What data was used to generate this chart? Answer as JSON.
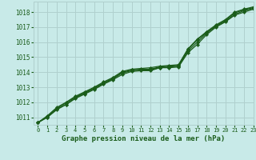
{
  "title": "Graphe pression niveau de la mer (hPa)",
  "background_color": "#c8eae8",
  "grid_color": "#b0d0ce",
  "line_color": "#1a5c1a",
  "text_color": "#1a5c1a",
  "xlim": [
    -0.5,
    23
  ],
  "ylim": [
    1010.5,
    1018.7
  ],
  "xticks": [
    0,
    1,
    2,
    3,
    4,
    5,
    6,
    7,
    8,
    9,
    10,
    11,
    12,
    13,
    14,
    15,
    16,
    17,
    18,
    19,
    20,
    21,
    22,
    23
  ],
  "yticks": [
    1011,
    1012,
    1013,
    1014,
    1015,
    1016,
    1017,
    1018
  ],
  "series": [
    [
      1010.65,
      1011.0,
      1011.55,
      1011.85,
      1012.25,
      1012.55,
      1012.85,
      1013.2,
      1013.5,
      1013.85,
      1014.05,
      1014.1,
      1014.1,
      1014.3,
      1014.3,
      1014.35,
      1015.3,
      1015.85,
      1016.5,
      1017.0,
      1017.35,
      1017.8,
      1018.0,
      1018.2
    ],
    [
      1010.65,
      1011.0,
      1011.5,
      1011.85,
      1012.3,
      1012.6,
      1012.9,
      1013.25,
      1013.55,
      1013.95,
      1014.1,
      1014.15,
      1014.15,
      1014.3,
      1014.35,
      1014.4,
      1015.4,
      1016.0,
      1016.6,
      1017.05,
      1017.4,
      1017.85,
      1018.1,
      1018.25
    ],
    [
      1010.65,
      1011.05,
      1011.6,
      1011.95,
      1012.35,
      1012.65,
      1012.95,
      1013.3,
      1013.6,
      1014.0,
      1014.15,
      1014.2,
      1014.2,
      1014.35,
      1014.4,
      1014.45,
      1015.5,
      1016.15,
      1016.65,
      1017.1,
      1017.45,
      1017.95,
      1018.15,
      1018.3
    ],
    [
      1010.65,
      1011.1,
      1011.65,
      1012.0,
      1012.4,
      1012.7,
      1013.0,
      1013.35,
      1013.65,
      1014.05,
      1014.2,
      1014.25,
      1014.3,
      1014.4,
      1014.45,
      1014.5,
      1015.55,
      1016.2,
      1016.7,
      1017.15,
      1017.5,
      1018.0,
      1018.2,
      1018.35
    ]
  ]
}
